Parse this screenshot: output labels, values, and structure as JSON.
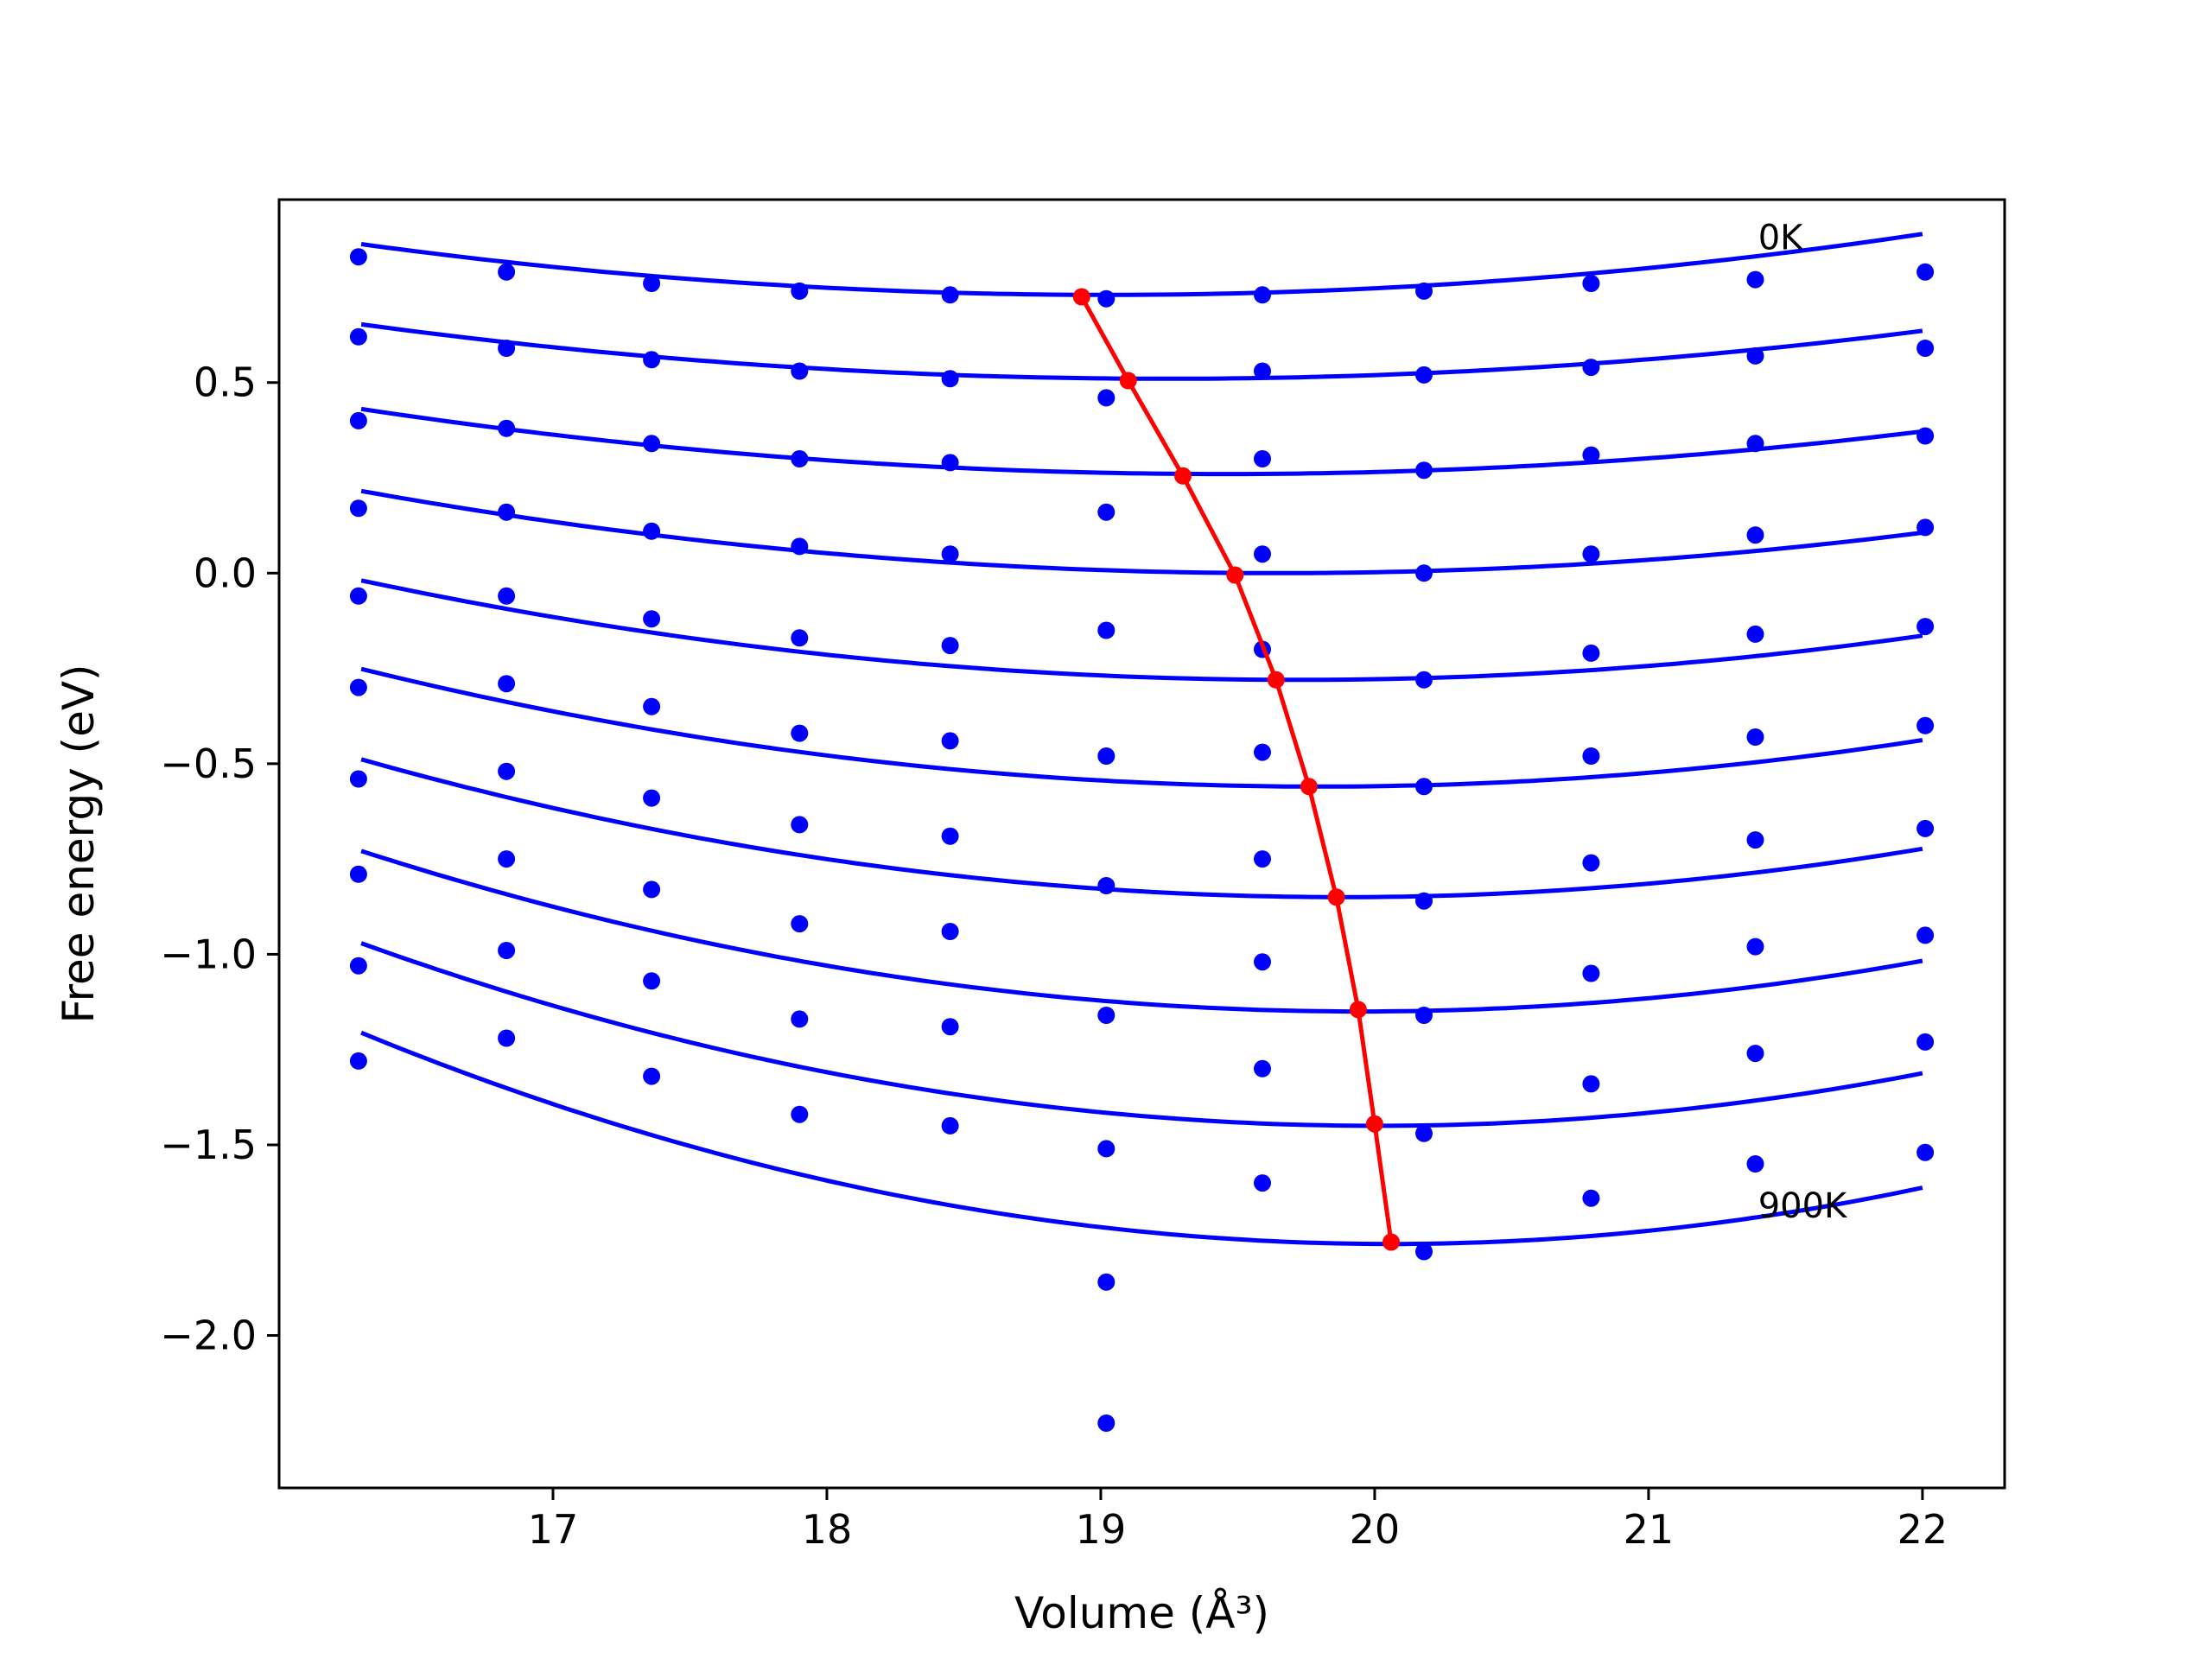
{
  "chart_data": {
    "type": "line",
    "title": "",
    "xlabel": "Volume (Å³)",
    "ylabel": "Free energy (eV)",
    "xlim": [
      16.0,
      22.3
    ],
    "ylim": [
      -2.4,
      0.98
    ],
    "xticks": [
      17,
      18,
      19,
      20,
      21,
      22
    ],
    "xtick_labels": [
      "17",
      "18",
      "19",
      "20",
      "21",
      "22"
    ],
    "yticks": [
      0.5,
      0.0,
      -0.5,
      -1.0,
      -1.5,
      -2.0
    ],
    "ytick_labels": [
      "0.5",
      "0.0",
      "−0.5",
      "−1.0",
      "−1.5",
      "−2.0"
    ],
    "grid": false,
    "annotations": [
      {
        "text": "0K",
        "x": 21.4,
        "y": 0.85
      },
      {
        "text": "900K",
        "x": 21.4,
        "y": -1.69
      }
    ],
    "colors": {
      "fit": "#0000ff",
      "points": "#0000ff",
      "minimum": "#ff0000"
    },
    "volumes": [
      16.29,
      16.83,
      17.36,
      17.9,
      18.45,
      19.02,
      19.59,
      20.18,
      20.79,
      21.39,
      22.01
    ],
    "series": [
      {
        "fit": {
          "v0": 19.02,
          "e0": 0.73,
          "a": 0.018,
          "x_start": 16.3,
          "x_end": 22.0
        },
        "points": [
          0.83,
          0.79,
          0.76,
          0.74,
          0.73,
          0.72,
          0.73,
          0.74,
          0.76,
          0.77,
          0.79
        ]
      },
      {
        "fit": {
          "v0": 19.24,
          "e0": 0.51,
          "a": 0.0165,
          "x_start": 16.3,
          "x_end": 22.0
        },
        "points": [
          0.62,
          0.59,
          0.56,
          0.53,
          0.51,
          0.46,
          0.53,
          0.52,
          0.54,
          0.57,
          0.59
        ]
      },
      {
        "fit": {
          "v0": 19.45,
          "e0": 0.26,
          "a": 0.0172,
          "x_start": 16.3,
          "x_end": 22.0
        },
        "points": [
          0.4,
          0.38,
          0.34,
          0.3,
          0.29,
          null,
          0.3,
          0.27,
          0.31,
          0.34,
          0.36
        ]
      },
      {
        "fit": {
          "v0": 19.65,
          "e0": 0.0,
          "a": 0.0192,
          "x_start": 16.3,
          "x_end": 22.0
        },
        "points": [
          0.17,
          0.16,
          0.11,
          0.07,
          0.05,
          0.16,
          0.05,
          0.0,
          0.05,
          0.1,
          0.12
        ]
      },
      {
        "fit": {
          "v0": 19.72,
          "e0": -0.28,
          "a": 0.0223,
          "x_start": 16.3,
          "x_end": 22.0
        },
        "points": [
          -0.06,
          -0.06,
          -0.12,
          -0.17,
          -0.19,
          -0.15,
          -0.2,
          -0.28,
          -0.21,
          -0.16,
          -0.14
        ]
      },
      {
        "fit": {
          "v0": 19.8,
          "e0": -0.56,
          "a": 0.0252,
          "x_start": 16.3,
          "x_end": 22.0
        },
        "points": [
          -0.3,
          -0.29,
          -0.35,
          -0.42,
          -0.44,
          -0.48,
          -0.47,
          -0.56,
          -0.48,
          -0.43,
          -0.4
        ]
      },
      {
        "fit": {
          "v0": 19.88,
          "e0": -0.85,
          "a": 0.0282,
          "x_start": 16.3,
          "x_end": 22.0
        },
        "points": [
          -0.54,
          -0.52,
          -0.59,
          -0.66,
          -0.69,
          -0.82,
          -0.75,
          -0.86,
          -0.76,
          -0.7,
          -0.67
        ]
      },
      {
        "fit": {
          "v0": 19.95,
          "e0": -1.15,
          "a": 0.0316,
          "x_start": 16.3,
          "x_end": 22.0
        },
        "points": [
          -0.79,
          -0.75,
          -0.83,
          -0.92,
          -0.94,
          -1.16,
          -1.02,
          -1.16,
          -1.05,
          -0.98,
          -0.95
        ]
      },
      {
        "fit": {
          "v0": 20.01,
          "e0": -1.45,
          "a": 0.0348,
          "x_start": 16.3,
          "x_end": 22.0
        },
        "points": [
          -1.03,
          -0.99,
          -1.07,
          -1.17,
          -1.19,
          -1.51,
          -1.3,
          -1.47,
          -1.34,
          -1.26,
          -1.23
        ]
      },
      {
        "fit": {
          "v0": 20.06,
          "e0": -1.76,
          "a": 0.0392,
          "x_start": 16.3,
          "x_end": 22.0
        },
        "points": [
          -1.28,
          -1.22,
          -1.32,
          -1.42,
          -1.45,
          -1.86,
          -1.6,
          -1.78,
          -1.64,
          -1.55,
          -1.52
        ]
      }
    ],
    "extra_points": [
      {
        "x": 19.02,
        "y": -2.23
      }
    ],
    "minimum_curve": {
      "x": [
        18.93,
        19.1,
        19.3,
        19.49,
        19.64,
        19.76,
        19.86,
        19.94,
        20.0,
        20.06
      ],
      "y": [
        0.725,
        0.505,
        0.255,
        -0.005,
        -0.28,
        -0.56,
        -0.85,
        -1.145,
        -1.445,
        -1.755
      ]
    }
  }
}
